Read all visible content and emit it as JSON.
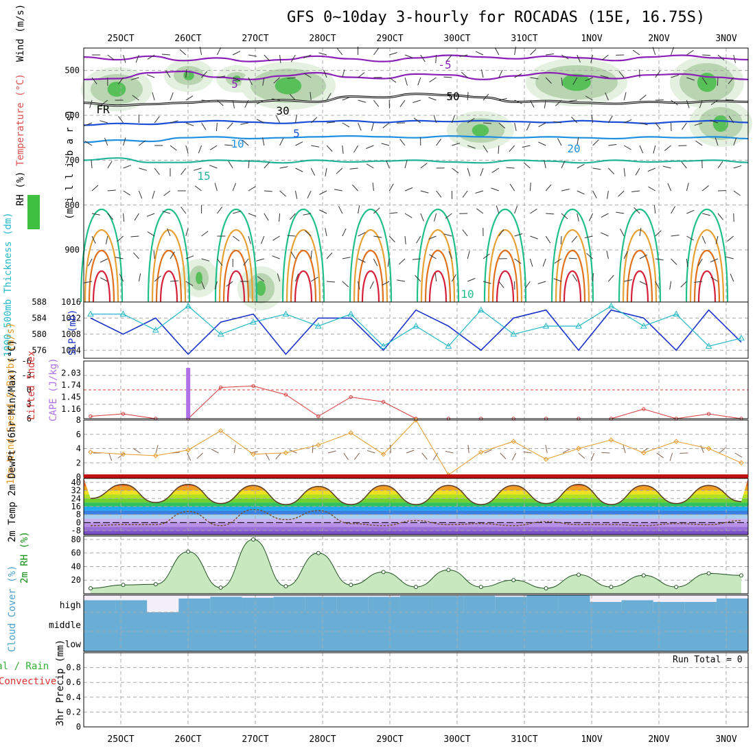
{
  "title": "GFS 0~10day 3-hourly for ROCADAS (15E, 16.75S)",
  "colors": {
    "temp_neg": "#8b1fb8",
    "temp_0": "#000000",
    "temp_5": "#1c4fd8",
    "temp_10": "#1f8fe0",
    "temp_15": "#1fb39a",
    "temp_20": "#1fbf8a",
    "temp_25": "#e8a030",
    "temp_30": "#e0701a",
    "temp_35": "#d81f3a",
    "slp": "#1a33c8",
    "thickness": "#22b8c8",
    "li": "#d83a3a",
    "cape": "#b070e8",
    "wind10": "#e89a28",
    "barb": "#806050",
    "rh": "#109010",
    "cloud": "#6aaed6",
    "clear": "#f4eef8"
  },
  "chart_data": [
    {
      "type": "heatmap",
      "panel": "upper-air cross section",
      "xtick_labels": [
        "25OCT",
        "26OCT",
        "27OCT",
        "28OCT",
        "29OCT",
        "30OCT",
        "31OCT",
        "1NOV",
        "2NOV",
        "3NOV"
      ],
      "ylabel_parts": [
        "Wind (m/s)",
        "Temperature (°C)",
        "RH (%)"
      ],
      "ylabel_units": "(m i l l i b a r s)",
      "yticks": [
        500,
        600,
        700,
        800,
        900
      ],
      "ylim": [
        1016,
        450
      ],
      "contour_labels": [
        "-5",
        "5",
        "FR",
        "5",
        "10",
        "15",
        "20",
        "10",
        "30",
        "50"
      ],
      "series": [
        {
          "name": "-5",
          "level_mb": [
            470,
            476,
            468,
            478,
            472,
            480,
            476,
            468,
            474,
            480,
            472,
            466,
            470,
            474,
            468,
            472,
            478,
            470,
            466,
            472,
            476
          ]
        },
        {
          "name": "5",
          "level_mb": [
            520,
            518,
            505,
            502,
            515,
            520,
            512,
            505,
            515,
            518,
            508,
            510,
            520,
            512,
            505,
            512,
            518,
            510,
            508,
            515,
            520
          ]
        },
        {
          "name": "FR",
          "level_mb": [
            572,
            578,
            575,
            572,
            568,
            570,
            566,
            570,
            558,
            560,
            552,
            555,
            560,
            570,
            568,
            572,
            574,
            570,
            572,
            568,
            570
          ]
        },
        {
          "name": "5",
          "level_mb": [
            622,
            618,
            620,
            615,
            612,
            615,
            618,
            614,
            612,
            616,
            612,
            614,
            612,
            614,
            616,
            612,
            615,
            618,
            614,
            612,
            616
          ]
        },
        {
          "name": "10",
          "level_mb": [
            660,
            655,
            658,
            650,
            648,
            652,
            650,
            648,
            646,
            648,
            650,
            646,
            648,
            650,
            648,
            650,
            652,
            648,
            650,
            648,
            652
          ]
        },
        {
          "name": "15",
          "level_mb": [
            700,
            695,
            705,
            705,
            700,
            702,
            706,
            700,
            704,
            702,
            700,
            704,
            706,
            700,
            702,
            706,
            700,
            704,
            702,
            700,
            705
          ]
        }
      ],
      "rh_levels": [
        10,
        30,
        50
      ]
    },
    {
      "type": "line",
      "panel": "SLP and thickness",
      "ylabel_left": "1000-500mb Thickness (dm)",
      "ylabel_right": "SLP (mb)",
      "ylim_left": [
        574,
        588
      ],
      "ylim_right": [
        1002,
        1016
      ],
      "ytick_labels_left": [
        "576",
        "580",
        "584",
        "588"
      ],
      "ytick_labels_right": [
        "1004",
        "1008",
        "1012",
        "1016"
      ],
      "x": [
        0,
        1,
        2,
        3,
        4,
        5,
        6,
        7,
        8,
        9,
        10,
        11,
        12,
        13,
        14,
        15,
        16,
        17,
        18,
        19,
        20
      ],
      "series": [
        {
          "name": "SLP (mb)",
          "axis": "right",
          "values": [
            1012,
            1008,
            1012,
            1003,
            1011,
            1013,
            1003,
            1012,
            1012,
            1004,
            1014,
            1010,
            1004,
            1012,
            1014,
            1004,
            1014,
            1012,
            1004,
            1014,
            1006
          ]
        },
        {
          "name": "1000-500mb Thickness (dm)",
          "axis": "left",
          "values": [
            585,
            585,
            581,
            587,
            580,
            583,
            585,
            582,
            585,
            577,
            582,
            577,
            586,
            580,
            582,
            582,
            587,
            582,
            585,
            577,
            579
          ]
        }
      ]
    },
    {
      "type": "line",
      "panel": "Lifted index and CAPE",
      "ylabel_left": "Lifted Index",
      "ylabel_right": "CAPE (J/kg)",
      "ylim_left": [
        6,
        -6
      ],
      "ytick_labels_left": [
        "-6",
        "-3",
        "0",
        "3",
        "6"
      ],
      "ytick_labels_right": [
        "2.03",
        "1.74",
        "1.45",
        "1.16"
      ],
      "x": [
        0,
        1,
        2,
        3,
        4,
        5,
        6,
        7,
        8,
        9,
        10,
        11,
        12,
        13,
        14,
        15,
        16,
        17,
        18,
        19,
        20
      ],
      "series": [
        {
          "name": "Lifted Index",
          "values": [
            5.5,
            5.0,
            6.0,
            6.0,
            -0.5,
            -0.8,
            1.0,
            5.5,
            1.5,
            2.5,
            6.0,
            6.0,
            6.0,
            6.0,
            6.0,
            6.0,
            6.0,
            4.0,
            6.0,
            5.0,
            6.0
          ]
        },
        {
          "name": "CAPE (J/kg)",
          "bars": [
            {
              "x": 3.0,
              "value": 2.03
            }
          ]
        }
      ]
    },
    {
      "type": "line",
      "panel": "10m wind",
      "ylabel": "10m Wind Speed & Barbs (m/s)",
      "ylim": [
        0,
        8
      ],
      "ytick_labels": [
        "0",
        "2",
        "4",
        "6",
        "8"
      ],
      "x": [
        0,
        1,
        2,
        3,
        4,
        5,
        6,
        7,
        8,
        9,
        10,
        11,
        12,
        13,
        14,
        15,
        16,
        17,
        18,
        19,
        20
      ],
      "series": [
        {
          "name": "10m Wind Speed",
          "values": [
            3.5,
            3.2,
            3.0,
            3.8,
            6.5,
            3.2,
            3.4,
            4.5,
            6.2,
            3.2,
            8.0,
            0.3,
            3.5,
            5.0,
            2.5,
            4.0,
            5.2,
            3.4,
            5.0,
            4.0,
            2.0
          ]
        }
      ]
    },
    {
      "type": "area",
      "panel": "2m temperature and dewpoint",
      "ylabel": "2m Temp 2m DewPt (6hr Min/Max) (°C)",
      "ylim": [
        -12,
        44
      ],
      "ytick_labels": [
        "-8",
        "0",
        "8",
        "16",
        "24",
        "32",
        "40"
      ],
      "x": [
        0,
        1,
        2,
        3,
        4,
        5,
        6,
        7,
        8,
        9,
        10,
        11,
        12,
        13,
        14,
        15,
        16,
        17,
        18,
        19,
        20
      ],
      "series": [
        {
          "name": "2m Temp",
          "values": [
            24,
            38,
            20,
            38,
            19,
            37,
            18,
            36,
            18,
            37,
            18,
            37,
            18,
            37,
            19,
            38,
            18,
            37,
            19,
            37,
            21
          ]
        },
        {
          "name": "2m DewPt",
          "values": [
            -3,
            -2,
            -2,
            11,
            -3,
            13,
            3,
            12,
            -1,
            -3,
            2,
            -2,
            -1,
            -3,
            1,
            -2,
            -2,
            -3,
            -1,
            -2,
            2
          ]
        }
      ]
    },
    {
      "type": "area",
      "panel": "2m relative humidity",
      "ylabel": "2m RH (%)",
      "ylim": [
        0,
        85
      ],
      "ytick_labels": [
        "20",
        "40",
        "60",
        "80"
      ],
      "x": [
        0,
        1,
        2,
        3,
        4,
        5,
        6,
        7,
        8,
        9,
        10,
        11,
        12,
        13,
        14,
        15,
        16,
        17,
        18,
        19,
        20
      ],
      "series": [
        {
          "name": "2m RH",
          "values": [
            8,
            13,
            14,
            62,
            9,
            80,
            11,
            60,
            13,
            32,
            10,
            35,
            10,
            20,
            8,
            28,
            10,
            27,
            10,
            30,
            27
          ]
        }
      ]
    },
    {
      "type": "heatmap",
      "panel": "cloud cover",
      "ylabel": "Cloud Cover (%)",
      "row_labels": [
        "high",
        "middle",
        "low"
      ],
      "high_cover": [
        0.7,
        0.7,
        0.0,
        0.8,
        0.9,
        0.85,
        0.9,
        0.9,
        0.9,
        0.9,
        0.95,
        0.95,
        0.95,
        0.9,
        1.0,
        1.0,
        0.6,
        0.7,
        0.6,
        0.6,
        0.8
      ],
      "middle_cover": [
        1,
        1,
        1,
        1,
        1,
        1,
        1,
        1,
        1,
        1,
        1,
        1,
        1,
        1,
        1,
        1,
        1,
        1,
        1,
        1,
        1
      ],
      "low_cover": [
        1,
        1,
        1,
        1,
        1,
        1,
        1,
        1,
        1,
        1,
        1,
        1,
        1,
        1,
        1,
        1,
        1,
        1,
        1,
        1,
        1
      ]
    },
    {
      "type": "bar",
      "panel": "precipitation",
      "ylabel": "3hr Precip (mm)",
      "legend_items": [
        "Total / Rain",
        "Convective"
      ],
      "run_total_text": "Run Total = 0",
      "ylim": [
        0,
        1
      ],
      "ytick_labels": [
        "0",
        "0.2",
        "0.4",
        "0.6",
        "0.8"
      ],
      "values": []
    }
  ]
}
